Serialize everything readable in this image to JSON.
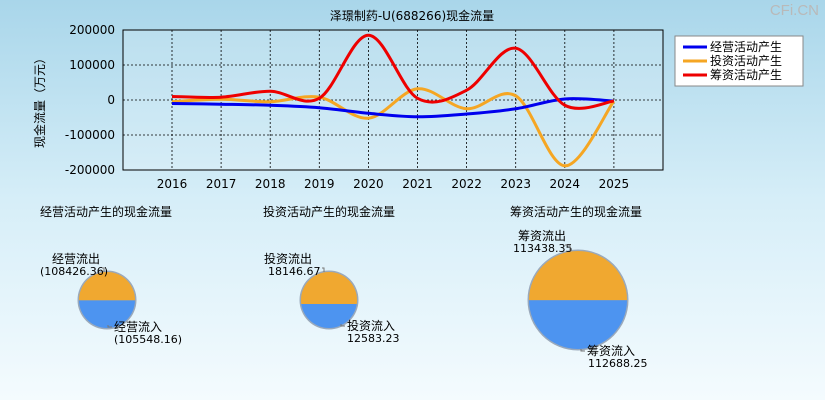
{
  "watermark": "CFi.CN",
  "colors": {
    "operating": "#0000ee",
    "investing": "#f5a623",
    "financing": "#ee0000",
    "pie_top": "#f0a830",
    "pie_bottom": "#4d94f0",
    "pie_edge": "#9aa9bb"
  },
  "chart_data": [
    {
      "type": "line",
      "title": "泽璟制药-U(688266)现金流量",
      "ylabel": "现金流量（万元）",
      "xlabel": "",
      "categories": [
        "2016",
        "2017",
        "2018",
        "2019",
        "2020",
        "2021",
        "2022",
        "2023",
        "2024",
        "2025"
      ],
      "yticks": [
        "200000",
        "100000",
        "0",
        "-100000",
        "-200000"
      ],
      "ylim": [
        -200000,
        200000
      ],
      "grid": true,
      "legend_position": "top-right",
      "series": [
        {
          "name": "经营活动产生",
          "color": "#0000ee",
          "values": [
            -10000,
            -12000,
            -15000,
            -22000,
            -38000,
            -48000,
            -40000,
            -25000,
            3000,
            -3000
          ]
        },
        {
          "name": "投资活动产生",
          "color": "#f5a623",
          "values": [
            -5000,
            2000,
            -5000,
            8000,
            -52000,
            32000,
            -25000,
            12000,
            -188000,
            -3000
          ]
        },
        {
          "name": "筹资活动产生",
          "color": "#ee0000",
          "values": [
            10000,
            8000,
            25000,
            5000,
            185000,
            5000,
            28000,
            148000,
            -15000,
            -3000
          ]
        }
      ]
    },
    {
      "type": "pie",
      "title": "经营活动产生的现金流量",
      "labels": [
        "经营流出",
        "经营流入"
      ],
      "values": [
        108426.36,
        105548.16
      ],
      "value_labels": [
        "(108426.36)",
        "(105548.16)"
      ],
      "colors": [
        "#f0a830",
        "#4d94f0"
      ]
    },
    {
      "type": "pie",
      "title": "投资活动产生的现金流量",
      "labels": [
        "投资流出",
        "投资流入"
      ],
      "values": [
        18146.67,
        12583.23
      ],
      "value_labels": [
        "18146.67",
        "12583.23"
      ],
      "colors": [
        "#f0a830",
        "#4d94f0"
      ]
    },
    {
      "type": "pie",
      "title": "筹资活动产生的现金流量",
      "labels": [
        "筹资流出",
        "筹资流入"
      ],
      "values": [
        113438.35,
        112688.25
      ],
      "value_labels": [
        "113438.35",
        "112688.25"
      ],
      "colors": [
        "#f0a830",
        "#4d94f0"
      ]
    }
  ]
}
